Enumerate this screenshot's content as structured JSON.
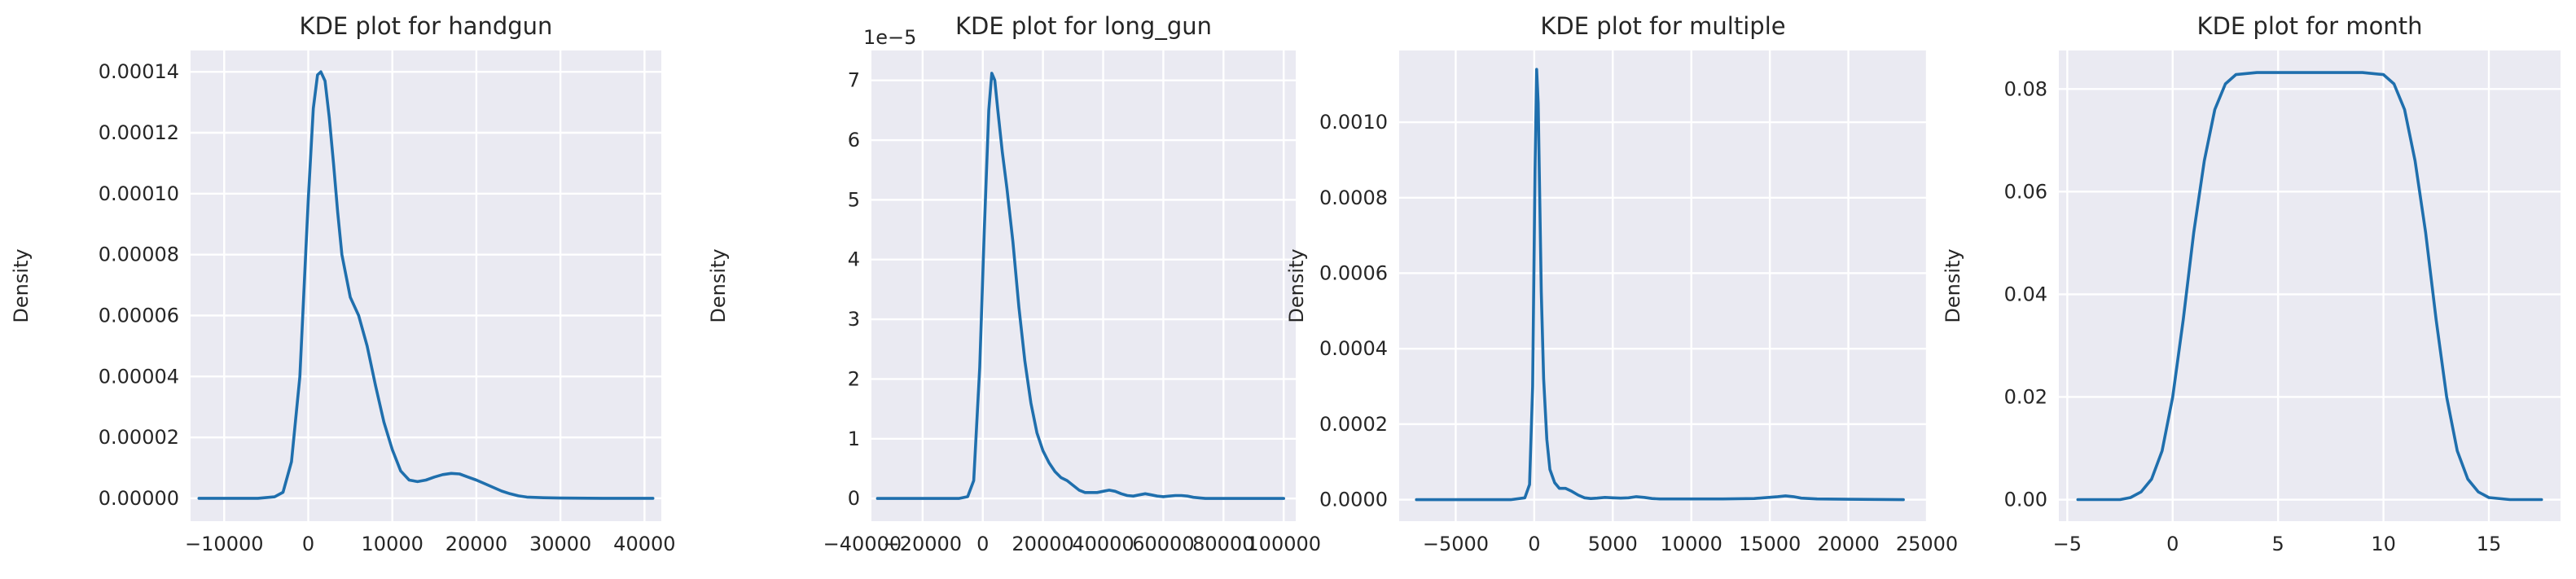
{
  "chart_data": [
    {
      "type": "line",
      "title": "KDE plot for handgun",
      "xlabel": "",
      "ylabel": "Density",
      "xlim": [
        -14000,
        42000
      ],
      "ylim": [
        -7.5e-06,
        0.000147
      ],
      "xticks": [
        -10000,
        0,
        10000,
        20000,
        30000,
        40000
      ],
      "xtick_labels": [
        "−10000",
        "0",
        "10000",
        "20000",
        "30000",
        "40000"
      ],
      "yticks": [
        0,
        2e-05,
        4e-05,
        6e-05,
        8e-05,
        0.0001,
        0.00012,
        0.00014
      ],
      "ytick_labels": [
        "0.00000",
        "0.00002",
        "0.00004",
        "0.00006",
        "0.00008",
        "0.00010",
        "0.00012",
        "0.00014"
      ],
      "y_offset_label": "",
      "grid": true,
      "series": [
        {
          "x": [
            -13000,
            -6000,
            -4000,
            -3000,
            -2000,
            -1000,
            0,
            600,
            1100,
            1500,
            2000,
            2500,
            3000,
            3500,
            4000,
            5000,
            6000,
            7000,
            8000,
            9000,
            10000,
            11000,
            12000,
            13000,
            14000,
            15000,
            16000,
            17000,
            18000,
            19000,
            20000,
            21000,
            22000,
            23000,
            24000,
            25000,
            26000,
            28000,
            30000,
            35000,
            41000
          ],
          "y": [
            0,
            0,
            5e-07,
            2e-06,
            1.2e-05,
            4e-05,
            9.8e-05,
            0.000128,
            0.000139,
            0.00014,
            0.000137,
            0.000125,
            0.00011,
            9.4e-05,
            8e-05,
            6.6e-05,
            6e-05,
            5e-05,
            3.7e-05,
            2.5e-05,
            1.6e-05,
            9e-06,
            6e-06,
            5.5e-06,
            6e-06,
            7e-06,
            7.8e-06,
            8.2e-06,
            8e-06,
            7e-06,
            6e-06,
            4.8e-06,
            3.6e-06,
            2.4e-06,
            1.5e-06,
            8e-07,
            4e-07,
            2e-07,
            1e-07,
            0,
            0
          ]
        }
      ]
    },
    {
      "type": "line",
      "title": "KDE plot for long_gun",
      "xlabel": "",
      "ylabel": "Density",
      "xlim": [
        -37000,
        104000
      ],
      "ylim": [
        -3.8e-07,
        7.5e-06
      ],
      "xticks": [
        -40000,
        -20000,
        0,
        20000,
        40000,
        60000,
        80000,
        100000
      ],
      "xtick_labels": [
        "−40000",
        "−20000",
        "0",
        "20000",
        "40000",
        "60000",
        "80000",
        "100000"
      ],
      "yticks": [
        0,
        1e-06,
        2e-06,
        3e-06,
        4e-06,
        5e-06,
        6e-06,
        7e-06
      ],
      "ytick_labels": [
        "0",
        "1",
        "2",
        "3",
        "4",
        "5",
        "6",
        "7"
      ],
      "y_offset_label": "1e−5",
      "grid": true,
      "series": [
        {
          "x": [
            -35000,
            -8000,
            -5000,
            -3000,
            -1000,
            500,
            2000,
            3000,
            4000,
            5000,
            6500,
            8000,
            10000,
            12000,
            14000,
            16000,
            18000,
            20000,
            22000,
            24000,
            26000,
            28000,
            30000,
            32000,
            34000,
            36000,
            38000,
            40000,
            42000,
            44000,
            46000,
            48000,
            50000,
            52000,
            54000,
            56000,
            58000,
            60000,
            62000,
            64000,
            66000,
            68000,
            70000,
            72000,
            74000,
            76000,
            80000,
            100000
          ],
          "y": [
            0,
            0,
            3e-08,
            3e-07,
            2.2e-06,
            4.5e-06,
            6.5e-06,
            7.12e-06,
            7e-06,
            6.5e-06,
            5.8e-06,
            5.2e-06,
            4.3e-06,
            3.2e-06,
            2.3e-06,
            1.6e-06,
            1.1e-06,
            8e-07,
            6e-07,
            4.5e-07,
            3.5e-07,
            3e-07,
            2.2e-07,
            1.4e-07,
            1e-07,
            1e-07,
            1e-07,
            1.2e-07,
            1.4e-07,
            1.2e-07,
            8e-08,
            5e-08,
            4e-08,
            6e-08,
            8e-08,
            6e-08,
            4e-08,
            3e-08,
            4e-08,
            5e-08,
            5e-08,
            4e-08,
            2e-08,
            1e-08,
            0,
            0,
            0,
            0
          ]
        }
      ]
    },
    {
      "type": "line",
      "title": "KDE plot for multiple",
      "xlabel": "",
      "ylabel": "Density",
      "xlim": [
        -8600,
        25000
      ],
      "ylim": [
        -5.7e-05,
        0.00119
      ],
      "xticks": [
        -5000,
        0,
        5000,
        10000,
        15000,
        20000,
        25000
      ],
      "xtick_labels": [
        "−5000",
        "0",
        "5000",
        "10000",
        "15000",
        "20000",
        "25000"
      ],
      "yticks": [
        0,
        0.0002,
        0.0004,
        0.0006,
        0.0008,
        0.001
      ],
      "ytick_labels": [
        "0.0000",
        "0.0002",
        "0.0004",
        "0.0006",
        "0.0008",
        "0.0010"
      ],
      "y_offset_label": "",
      "grid": true,
      "series": [
        {
          "x": [
            -7500,
            -1500,
            -600,
            -300,
            -100,
            50,
            150,
            250,
            350,
            450,
            600,
            800,
            1000,
            1300,
            1600,
            2000,
            2400,
            2800,
            3200,
            3600,
            4000,
            4500,
            5000,
            5500,
            6000,
            6500,
            7000,
            7500,
            8000,
            10000,
            12000,
            14000,
            15500,
            16000,
            16500,
            17000,
            18000,
            20000,
            23500
          ],
          "y": [
            0,
            0,
            5e-06,
            4e-05,
            0.0003,
            0.00087,
            0.00114,
            0.00105,
            0.0008,
            0.00055,
            0.00032,
            0.00016,
            8e-05,
            4.5e-05,
            3e-05,
            3e-05,
            2.2e-05,
            1.2e-05,
            5e-06,
            3e-06,
            4e-06,
            6e-06,
            5e-06,
            4e-06,
            5e-06,
            8e-06,
            6e-06,
            3e-06,
            2e-06,
            2e-06,
            2e-06,
            3e-06,
            8e-06,
            1e-05,
            8e-06,
            4e-06,
            2e-06,
            1e-06,
            0
          ]
        }
      ]
    },
    {
      "type": "line",
      "title": "KDE plot for month",
      "xlabel": "",
      "ylabel": "Density",
      "xlim": [
        -5.4,
        18.4
      ],
      "ylim": [
        -0.0042,
        0.0875
      ],
      "xticks": [
        -5,
        0,
        5,
        10,
        15
      ],
      "xtick_labels": [
        "−5",
        "0",
        "5",
        "10",
        "15"
      ],
      "yticks": [
        0,
        0.02,
        0.04,
        0.06,
        0.08
      ],
      "ytick_labels": [
        "0.00",
        "0.02",
        "0.04",
        "0.06",
        "0.08"
      ],
      "y_offset_label": "",
      "grid": true,
      "series": [
        {
          "x": [
            -4.5,
            -2.5,
            -2,
            -1.5,
            -1,
            -0.5,
            0,
            0.5,
            1,
            1.5,
            2,
            2.5,
            3,
            4,
            5,
            6,
            7,
            8,
            9,
            10,
            10.5,
            11,
            11.5,
            12,
            12.5,
            13,
            13.5,
            14,
            14.5,
            15,
            16,
            17.5
          ],
          "y": [
            0,
            0,
            0.0004,
            0.0015,
            0.004,
            0.0095,
            0.02,
            0.035,
            0.052,
            0.066,
            0.076,
            0.081,
            0.0828,
            0.0832,
            0.0832,
            0.0832,
            0.0832,
            0.0832,
            0.0832,
            0.0828,
            0.081,
            0.076,
            0.066,
            0.052,
            0.035,
            0.02,
            0.0095,
            0.004,
            0.0015,
            0.0004,
            0,
            0
          ]
        }
      ]
    }
  ]
}
